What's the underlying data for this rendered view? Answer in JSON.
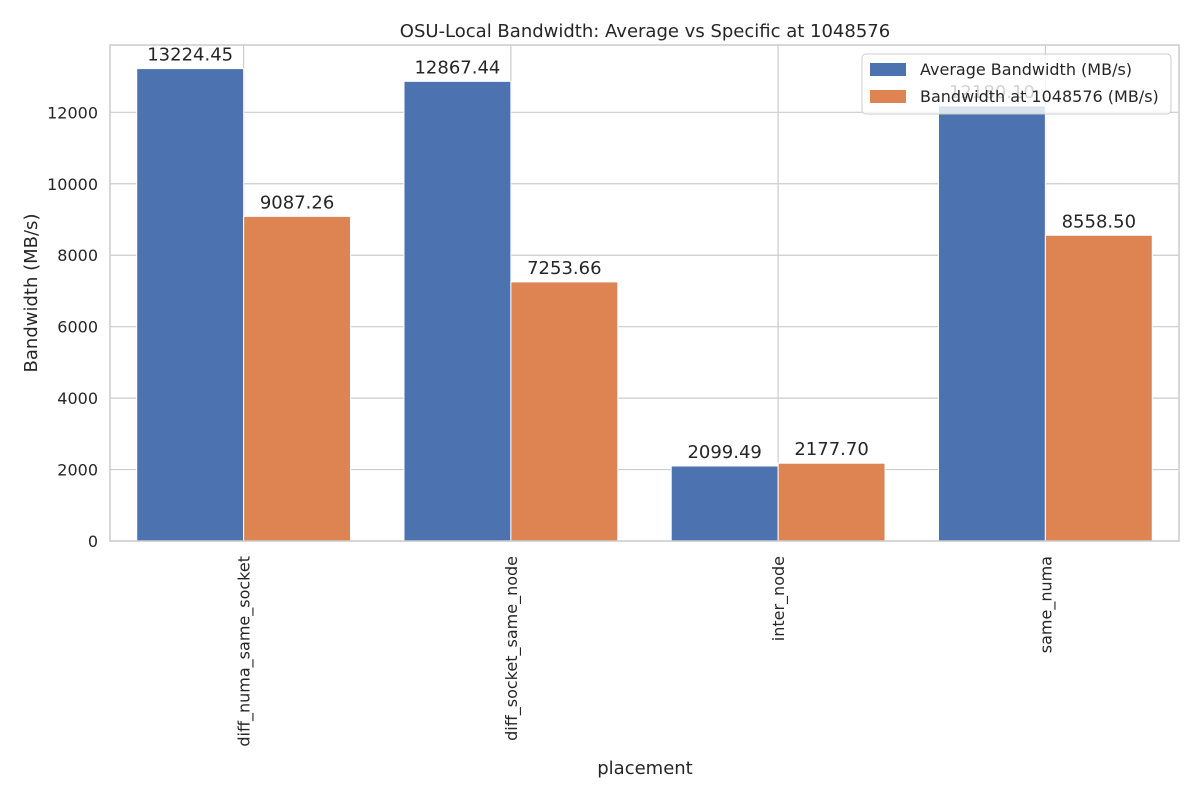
{
  "chart_data": {
    "type": "bar",
    "title": "OSU-Local Bandwidth: Average vs Specific at 1048576",
    "xlabel": "placement",
    "ylabel": "Bandwidth (MB/s)",
    "categories": [
      "diff_numa_same_socket",
      "diff_socket_same_node",
      "inter_node",
      "same_numa"
    ],
    "series": [
      {
        "name": "Average Bandwidth (MB/s)",
        "color": "#4c72b0",
        "values": [
          13224.45,
          12867.44,
          2099.49,
          12180.1
        ],
        "labels": [
          "13224.45",
          "12867.44",
          "2099.49",
          "12180.10"
        ]
      },
      {
        "name": "Bandwidth at 1048576 (MB/s)",
        "color": "#dd8452",
        "values": [
          9087.26,
          7253.66,
          2177.7,
          8558.5
        ],
        "labels": [
          "9087.26",
          "7253.66",
          "2177.70",
          "8558.50"
        ]
      }
    ],
    "yticks": [
      "0",
      "2000",
      "4000",
      "6000",
      "8000",
      "10000",
      "12000"
    ],
    "ylim": [
      0,
      13885
    ],
    "grid": true,
    "legend_position": "top-right"
  }
}
